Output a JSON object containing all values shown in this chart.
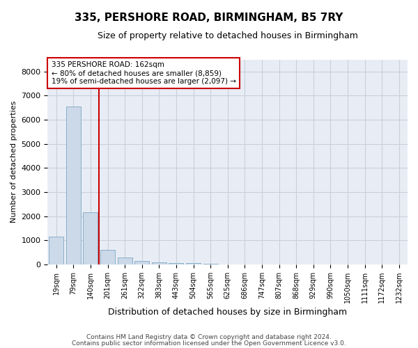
{
  "title1": "335, PERSHORE ROAD, BIRMINGHAM, B5 7RY",
  "title2": "Size of property relative to detached houses in Birmingham",
  "xlabel": "Distribution of detached houses by size in Birmingham",
  "ylabel": "Number of detached properties",
  "footnote1": "Contains HM Land Registry data © Crown copyright and database right 2024.",
  "footnote2": "Contains public sector information licensed under the Open Government Licence v3.0.",
  "bar_labels": [
    "19sqm",
    "79sqm",
    "140sqm",
    "201sqm",
    "261sqm",
    "322sqm",
    "383sqm",
    "443sqm",
    "504sqm",
    "565sqm",
    "625sqm",
    "686sqm",
    "747sqm",
    "807sqm",
    "868sqm",
    "929sqm",
    "990sqm",
    "1050sqm",
    "1111sqm",
    "1172sqm",
    "1232sqm"
  ],
  "bar_values": [
    1150,
    6550,
    2150,
    600,
    280,
    130,
    90,
    60,
    50,
    10,
    5,
    0,
    0,
    0,
    0,
    0,
    0,
    0,
    0,
    0,
    0
  ],
  "bar_color": "#ccd9e8",
  "bar_edge_color": "#8aafc8",
  "grid_color": "#c8d0dc",
  "bg_color": "#e8edf5",
  "annotation_line1": "335 PERSHORE ROAD: 162sqm",
  "annotation_line2": "← 80% of detached houses are smaller (8,859)",
  "annotation_line3": "19% of semi-detached houses are larger (2,097) →",
  "vline_x_index": 2.5,
  "vline_color": "#cc0000",
  "annotation_box_color": "#ffffff",
  "annotation_box_edge": "#cc0000",
  "ylim": [
    0,
    8500
  ],
  "yticks": [
    0,
    1000,
    2000,
    3000,
    4000,
    5000,
    6000,
    7000,
    8000
  ]
}
